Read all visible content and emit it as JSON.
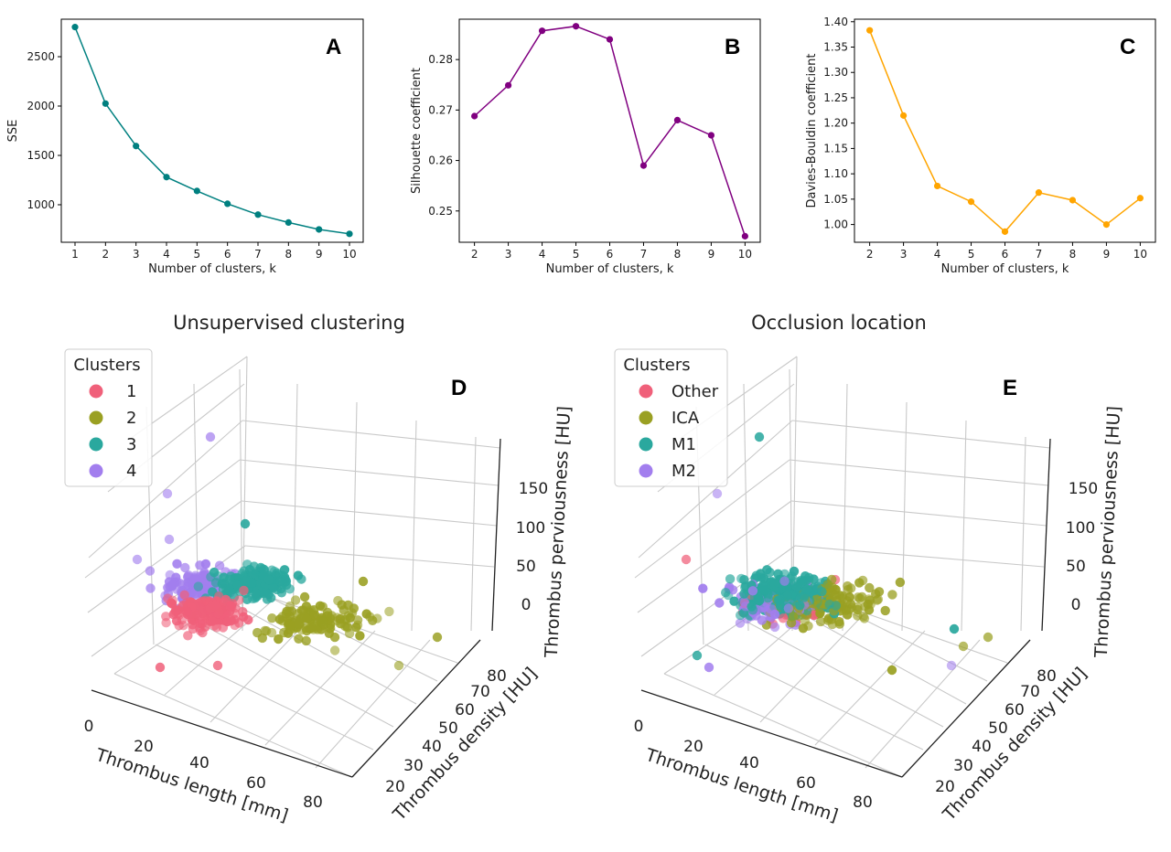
{
  "chart_data": [
    {
      "type": "line",
      "panel": "A",
      "xlabel": "Number of clusters, k",
      "ylabel": "SSE",
      "x": [
        1,
        2,
        3,
        4,
        5,
        6,
        7,
        8,
        9,
        10
      ],
      "values": [
        2800,
        2025,
        1595,
        1280,
        1140,
        1010,
        900,
        820,
        750,
        705
      ],
      "xticks": [
        1,
        2,
        3,
        4,
        5,
        6,
        7,
        8,
        9,
        10
      ],
      "yticks": [
        1000,
        1500,
        2000,
        2500
      ],
      "ylim": [
        620,
        2880
      ],
      "color": "#008080"
    },
    {
      "type": "line",
      "panel": "B",
      "xlabel": "Number of clusters, k",
      "ylabel": "Silhouette coefficient",
      "x": [
        2,
        3,
        4,
        5,
        6,
        7,
        8,
        9,
        10
      ],
      "values": [
        0.2688,
        0.2749,
        0.2857,
        0.2866,
        0.284,
        0.259,
        0.268,
        0.265,
        0.245
      ],
      "xticks": [
        2,
        3,
        4,
        5,
        6,
        7,
        8,
        9,
        10
      ],
      "yticks": [
        0.25,
        0.26,
        0.27,
        0.28
      ],
      "yticklabels": [
        "0.25",
        "0.26",
        "0.27",
        "0.28"
      ],
      "ylim": [
        0.2438,
        0.288
      ],
      "color": "#800080"
    },
    {
      "type": "line",
      "panel": "C",
      "xlabel": "Number of clusters, k",
      "ylabel": "Davies-Bouldin coefficient",
      "x": [
        2,
        3,
        4,
        5,
        6,
        7,
        8,
        9,
        10
      ],
      "values": [
        1.383,
        1.215,
        1.076,
        1.045,
        0.986,
        1.063,
        1.048,
        1.0,
        1.052
      ],
      "xticks": [
        2,
        3,
        4,
        5,
        6,
        7,
        8,
        9,
        10
      ],
      "yticks": [
        1.0,
        1.05,
        1.1,
        1.15,
        1.2,
        1.25,
        1.3,
        1.35,
        1.4
      ],
      "yticklabels": [
        "1.00",
        "1.05",
        "1.10",
        "1.15",
        "1.20",
        "1.25",
        "1.30",
        "1.35",
        "1.40"
      ],
      "ylim": [
        0.965,
        1.405
      ],
      "color": "#FFA500"
    },
    {
      "type": "scatter",
      "panel": "D",
      "title": "Unsupervised clustering",
      "xlabel": "Thrombus length [mm]",
      "ylabel": "Thrombus density [HU]",
      "zlabel": "Thrombus perviousness [HU]",
      "xticks": [
        0,
        20,
        40,
        60,
        80
      ],
      "yticks": [
        20,
        30,
        40,
        50,
        60,
        70,
        80
      ],
      "zticks": [
        0,
        50,
        100,
        150
      ],
      "legend_title": "Clusters",
      "legend_placement": "top-left",
      "series": [
        {
          "name": "1",
          "color": "#F0607A"
        },
        {
          "name": "2",
          "color": "#9AA022"
        },
        {
          "name": "3",
          "color": "#2AA89E"
        },
        {
          "name": "4",
          "color": "#A27EEE"
        }
      ]
    },
    {
      "type": "scatter",
      "panel": "E",
      "title": "Occlusion location",
      "xlabel": "Thrombus length [mm]",
      "ylabel": "Thrombus density [HU]",
      "zlabel": "Thrombus perviousness [HU]",
      "xticks": [
        0,
        20,
        40,
        60,
        80
      ],
      "yticks": [
        20,
        30,
        40,
        50,
        60,
        70,
        80
      ],
      "zticks": [
        0,
        50,
        100,
        150
      ],
      "legend_title": "Clusters",
      "legend_placement": "top-left",
      "series": [
        {
          "name": "Other",
          "color": "#F0607A"
        },
        {
          "name": "ICA",
          "color": "#9AA022"
        },
        {
          "name": "M1",
          "color": "#2AA89E"
        },
        {
          "name": "M2",
          "color": "#A27EEE"
        }
      ]
    }
  ]
}
